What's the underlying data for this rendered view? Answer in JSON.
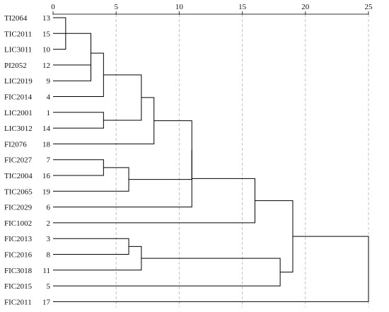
{
  "chart_data": {
    "type": "dendrogram",
    "x_ticks": [
      0,
      5,
      10,
      15,
      20,
      25
    ],
    "xlim": [
      0,
      25
    ],
    "grid": "vertical dashed at ticks",
    "line_color": "#000000",
    "grid_color": "#c0c0c0",
    "leaves": [
      {
        "label": "TI2064",
        "id": "13"
      },
      {
        "label": "TIC2011",
        "id": "15"
      },
      {
        "label": "LIC3011",
        "id": "10"
      },
      {
        "label": "PI2052",
        "id": "12"
      },
      {
        "label": "LIC2019",
        "id": "9"
      },
      {
        "label": "FIC2014",
        "id": "4"
      },
      {
        "label": "LIC2001",
        "id": "1"
      },
      {
        "label": "LIC3012",
        "id": "14"
      },
      {
        "label": "FI2076",
        "id": "18"
      },
      {
        "label": "FIC2027",
        "id": "7"
      },
      {
        "label": "TIC2004",
        "id": "16"
      },
      {
        "label": "TIC2065",
        "id": "19"
      },
      {
        "label": "FIC2029",
        "id": "6"
      },
      {
        "label": "FIC1002",
        "id": "2"
      },
      {
        "label": "FIC2013",
        "id": "3"
      },
      {
        "label": "FIC2016",
        "id": "8"
      },
      {
        "label": "FIC3018",
        "id": "11"
      },
      {
        "label": "FIC2015",
        "id": "5"
      },
      {
        "label": "FIC2011",
        "id": "17"
      }
    ],
    "merges": [
      {
        "a": "L0",
        "b": "L2",
        "height": 1.0
      },
      {
        "a": "N0",
        "b": "L1",
        "height": 2.0
      },
      {
        "a": "L3",
        "b": "L4",
        "height": 3.0
      },
      {
        "a": "N1",
        "b": "N2",
        "height": 3.0
      },
      {
        "a": "N3",
        "b": "L5",
        "height": 4.0
      },
      {
        "a": "L6",
        "b": "L7",
        "height": 4.0
      },
      {
        "a": "N4",
        "b": "N5",
        "height": 7.0
      },
      {
        "a": "N6",
        "b": "L8",
        "height": 8.0
      },
      {
        "a": "L9",
        "b": "L10",
        "height": 4.0
      },
      {
        "a": "N8",
        "b": "L11",
        "height": 6.0
      },
      {
        "a": "N7",
        "b": "N9",
        "height": 11.0
      },
      {
        "a": "N10",
        "b": "L12",
        "height": 11.0
      },
      {
        "a": "N11",
        "b": "L13",
        "height": 16.0
      },
      {
        "a": "L14",
        "b": "L15",
        "height": 6.0
      },
      {
        "a": "N13",
        "b": "L16",
        "height": 7.0
      },
      {
        "a": "N14",
        "b": "L17",
        "height": 18.0
      },
      {
        "a": "N12",
        "b": "N15",
        "height": 19.0
      },
      {
        "a": "N16",
        "b": "L18",
        "height": 25.0
      }
    ]
  }
}
